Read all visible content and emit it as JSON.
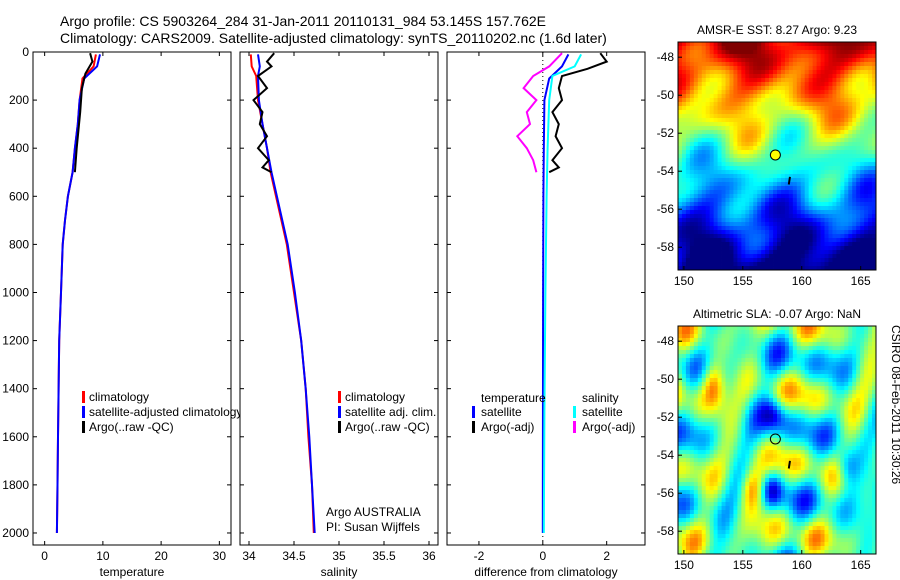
{
  "header": {
    "line1": "Argo profile: CS 5903264_284 31-Jan-2011 20110131_984 53.145S 157.762E",
    "line2": "Climatology: CARS2009. Satellite-adjusted climatology: synTS_20110202.nc (1.6d later)"
  },
  "credit": "CSIRO 08-Feb-2011 10:30:26",
  "colors": {
    "red": "#ff0000",
    "blue": "#0000ff",
    "black": "#000000",
    "cyan": "#00ffff",
    "magenta": "#ff00ff"
  },
  "chart_data": [
    {
      "type": "line",
      "xlabel": "temperature",
      "x_ticks": [
        "0",
        "10",
        "20",
        "30"
      ],
      "y_ticks": [
        "0",
        "200",
        "400",
        "600",
        "800",
        "1000",
        "1200",
        "1400",
        "1600",
        "1800",
        "2000"
      ],
      "xlim": [
        -2,
        32
      ],
      "ylim": [
        2050,
        0
      ],
      "legend": [
        "climatology",
        "satellite-adjusted climatology",
        "Argo(..raw -QC)"
      ],
      "series": [
        {
          "name": "climatology",
          "color": "#ff0000",
          "points": [
            [
              8.8,
              10
            ],
            [
              8.4,
              60
            ],
            [
              6.5,
              110
            ],
            [
              6.0,
              200
            ],
            [
              5.7,
              300
            ],
            [
              5.2,
              400
            ],
            [
              4.8,
              500
            ],
            [
              4.0,
              600
            ],
            [
              3.5,
              700
            ],
            [
              3.1,
              800
            ],
            [
              2.8,
              1000
            ],
            [
              2.5,
              1200
            ],
            [
              2.4,
              1400
            ],
            [
              2.3,
              1600
            ],
            [
              2.2,
              1800
            ],
            [
              2.1,
              2000
            ]
          ]
        },
        {
          "name": "satellite-adjusted climatology",
          "color": "#0000ff",
          "points": [
            [
              9.5,
              10
            ],
            [
              9.0,
              60
            ],
            [
              6.8,
              110
            ],
            [
              6.0,
              200
            ],
            [
              5.7,
              300
            ],
            [
              5.2,
              400
            ],
            [
              4.8,
              500
            ],
            [
              4.0,
              600
            ],
            [
              3.5,
              700
            ],
            [
              3.1,
              800
            ],
            [
              2.8,
              1000
            ],
            [
              2.5,
              1200
            ],
            [
              2.4,
              1400
            ],
            [
              2.3,
              1600
            ],
            [
              2.2,
              1800
            ],
            [
              2.1,
              2000
            ]
          ]
        },
        {
          "name": "Argo(..raw -QC)",
          "color": "#000000",
          "points": [
            [
              7.8,
              5
            ],
            [
              8.2,
              40
            ],
            [
              7.0,
              90
            ],
            [
              6.4,
              150
            ],
            [
              6.1,
              250
            ],
            [
              5.5,
              400
            ],
            [
              5.2,
              500
            ]
          ]
        }
      ]
    },
    {
      "type": "line",
      "xlabel": "salinity",
      "x_ticks": [
        "34",
        "34.5",
        "35",
        "35.5",
        "36"
      ],
      "xlim": [
        33.9,
        36.1
      ],
      "ylim": [
        2050,
        0
      ],
      "legend": [
        "climatology",
        "satellite adj. clim.",
        "Argo(..raw -QC)"
      ],
      "annotations": [
        "Argo AUSTRALIA",
        "PI: Susan Wijffels"
      ],
      "series": [
        {
          "name": "climatology",
          "color": "#ff0000",
          "points": [
            [
              34.02,
              10
            ],
            [
              34.03,
              60
            ],
            [
              34.08,
              100
            ],
            [
              34.1,
              200
            ],
            [
              34.15,
              300
            ],
            [
              34.2,
              400
            ],
            [
              34.24,
              500
            ],
            [
              34.3,
              600
            ],
            [
              34.36,
              700
            ],
            [
              34.42,
              800
            ],
            [
              34.5,
              1000
            ],
            [
              34.58,
              1200
            ],
            [
              34.63,
              1400
            ],
            [
              34.66,
              1600
            ],
            [
              34.7,
              1800
            ],
            [
              34.72,
              2000
            ]
          ]
        },
        {
          "name": "satellite adj. clim.",
          "color": "#0000ff",
          "points": [
            [
              34.1,
              10
            ],
            [
              34.12,
              60
            ],
            [
              34.1,
              100
            ],
            [
              34.11,
              200
            ],
            [
              34.15,
              300
            ],
            [
              34.2,
              400
            ],
            [
              34.25,
              500
            ],
            [
              34.31,
              600
            ],
            [
              34.37,
              700
            ],
            [
              34.43,
              800
            ],
            [
              34.51,
              1000
            ],
            [
              34.58,
              1200
            ],
            [
              34.63,
              1400
            ],
            [
              34.67,
              1600
            ],
            [
              34.7,
              1800
            ],
            [
              34.73,
              2000
            ]
          ]
        },
        {
          "name": "Argo(..raw -QC)",
          "color": "#000000",
          "points": [
            [
              34.28,
              5
            ],
            [
              34.2,
              40
            ],
            [
              34.25,
              60
            ],
            [
              34.1,
              100
            ],
            [
              34.2,
              150
            ],
            [
              34.05,
              200
            ],
            [
              34.15,
              250
            ],
            [
              34.12,
              300
            ],
            [
              34.2,
              350
            ],
            [
              34.1,
              400
            ],
            [
              34.22,
              450
            ],
            [
              34.15,
              480
            ],
            [
              34.25,
              500
            ]
          ]
        }
      ]
    },
    {
      "type": "line",
      "xlabel": "difference from climatology",
      "x_ticks": [
        "-2",
        "0",
        "2"
      ],
      "xlim": [
        -3,
        3.2
      ],
      "ylim": [
        2050,
        0
      ],
      "legend_temperature": [
        "temperature",
        "satellite",
        "Argo(-adj)"
      ],
      "legend_salinity": [
        "salinity",
        "satellite",
        "Argo(-adj)"
      ],
      "series": [
        {
          "name": "satellite",
          "color": "#0000ff",
          "points": [
            [
              0.8,
              10
            ],
            [
              0.6,
              60
            ],
            [
              0.2,
              110
            ],
            [
              0.05,
              200
            ],
            [
              0.03,
              400
            ],
            [
              0.02,
              600
            ],
            [
              0.01,
              1000
            ],
            [
              0.0,
              2000
            ]
          ]
        },
        {
          "name": "Argo(-adj)",
          "color": "#000000",
          "points": [
            [
              1.8,
              5
            ],
            [
              2.0,
              40
            ],
            [
              1.4,
              70
            ],
            [
              0.6,
              100
            ],
            [
              0.5,
              150
            ],
            [
              0.6,
              200
            ],
            [
              0.3,
              250
            ],
            [
              0.5,
              300
            ],
            [
              0.4,
              350
            ],
            [
              0.6,
              400
            ],
            [
              0.3,
              450
            ],
            [
              0.5,
              480
            ],
            [
              0.2,
              500
            ]
          ]
        },
        {
          "name": "satellite",
          "color": "#00ffff",
          "points": [
            [
              1.2,
              10
            ],
            [
              1.0,
              60
            ],
            [
              0.3,
              100
            ],
            [
              0.2,
              200
            ],
            [
              0.15,
              400
            ],
            [
              0.12,
              600
            ],
            [
              0.08,
              1000
            ],
            [
              0.05,
              1500
            ],
            [
              0.03,
              2000
            ]
          ]
        },
        {
          "name": "Argo(-adj)",
          "color": "#ff00ff",
          "points": [
            [
              0.6,
              5
            ],
            [
              0.2,
              60
            ],
            [
              -0.3,
              100
            ],
            [
              -0.6,
              150
            ],
            [
              -0.2,
              200
            ],
            [
              -0.5,
              250
            ],
            [
              -0.4,
              300
            ],
            [
              -0.8,
              350
            ],
            [
              -0.5,
              400
            ],
            [
              -0.3,
              450
            ],
            [
              -0.2,
              500
            ]
          ]
        }
      ]
    },
    {
      "type": "heatmap",
      "title": "AMSR-E SST: 8.27 Argo: 9.23",
      "x_ticks": [
        "150",
        "155",
        "160",
        "165"
      ],
      "y_ticks": [
        "-48",
        "-50",
        "-52",
        "-54",
        "-56",
        "-58"
      ],
      "xlim": [
        149.5,
        166.3
      ],
      "ylim": [
        -59.2,
        -47.2
      ],
      "marker": {
        "lon": 157.762,
        "lat": -53.145,
        "fill": "#ffff00"
      }
    },
    {
      "type": "heatmap",
      "title": "Altimetric SLA: -0.07 Argo: NaN",
      "x_ticks": [
        "150",
        "155",
        "160",
        "165"
      ],
      "y_ticks": [
        "-48",
        "-50",
        "-52",
        "-54",
        "-56",
        "-58"
      ],
      "xlim": [
        149.5,
        166.3
      ],
      "ylim": [
        -59.2,
        -47.2
      ],
      "marker": {
        "lon": 157.762,
        "lat": -53.145,
        "fill": "none"
      }
    }
  ]
}
